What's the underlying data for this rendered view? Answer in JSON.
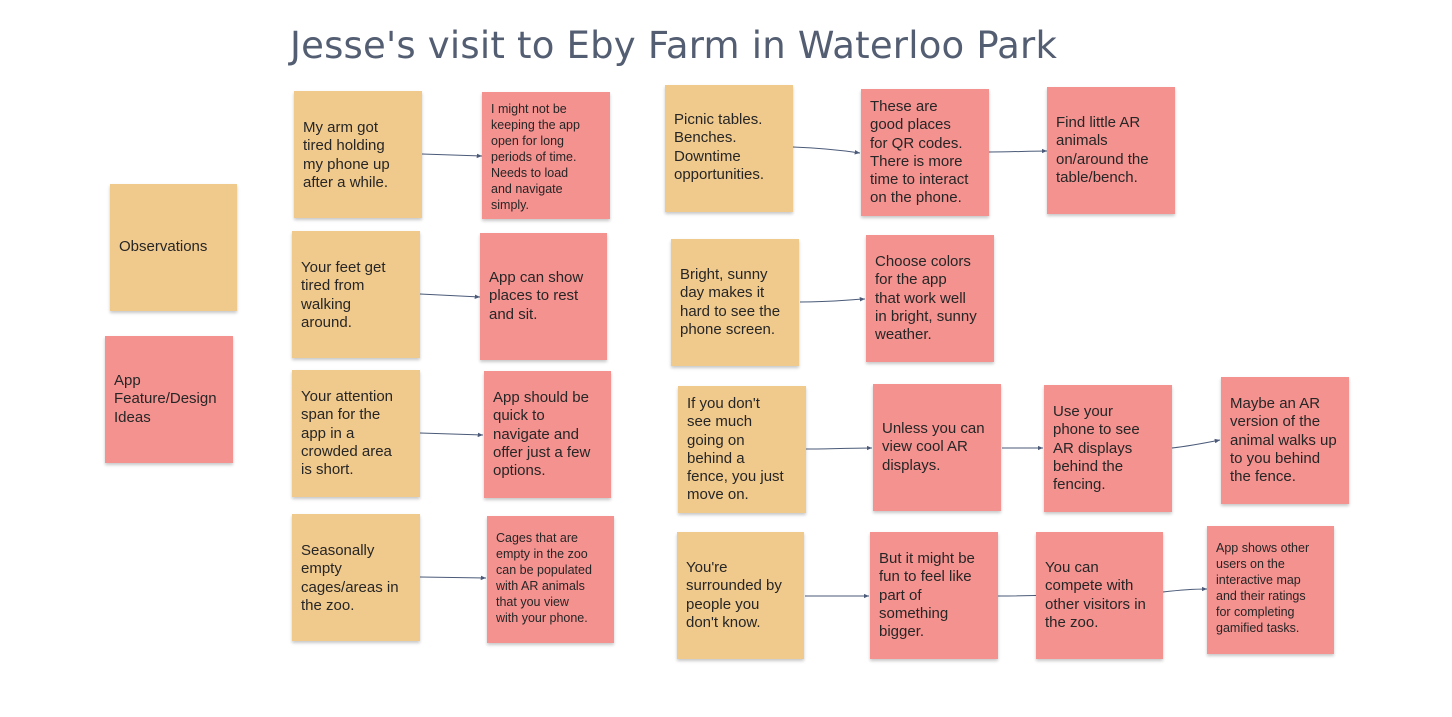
{
  "title": "Jesse's visit to Eby Farm in Waterloo Park",
  "legend": {
    "observations": "Observations",
    "ideas": "App\nFeature/Design\nIdeas"
  },
  "colors": {
    "observation": "#f0c98c",
    "idea": "#f49290",
    "title": "#545e72",
    "connector": "#4a5a78"
  },
  "notes": {
    "obs_arm": "My arm got\ntired holding\nmy phone up\nafter a while.",
    "idea_arm": "I might not be\nkeeping the app\nopen for long\nperiods of time.\nNeeds to load\nand navigate\nsimply.",
    "obs_feet": "Your feet get\ntired from\nwalking\naround.",
    "idea_feet": "App can show\nplaces to rest\nand sit.",
    "obs_attention": "Your attention\nspan for the\napp in a\ncrowded area\nis short.",
    "idea_attention": "App should be\nquick to\nnavigate and\noffer just a few\noptions.",
    "obs_cages": "Seasonally\nempty\ncages/areas in\nthe zoo.",
    "idea_cages": "Cages that are\nempty in the zoo\ncan be populated\nwith AR animals\nthat you view\nwith your phone.",
    "obs_picnic": "Picnic tables.\nBenches.\nDowntime\nopportunities.",
    "idea_qr": "These are\ngood places\nfor QR codes.\nThere is more\ntime to interact\non the phone.",
    "idea_little_ar": "Find little AR\nanimals\non/around the\ntable/bench.",
    "obs_sunny": "Bright, sunny\nday makes it\nhard to see the\nphone screen.",
    "idea_colors": "Choose colors\nfor the app\nthat work well\nin bright, sunny\nweather.",
    "obs_fence": "If you don't\nsee much\ngoing on\nbehind a\nfence, you just\nmove on.",
    "idea_unless": "Unless you can\nview cool AR\ndisplays.",
    "idea_use_phone": "Use your\nphone to see\nAR displays\nbehind the\nfencing.",
    "idea_maybe_ar": "Maybe an AR\nversion of the\nanimal walks up\nto you behind\nthe fence.",
    "obs_surrounded": "You're\nsurrounded by\npeople you\ndon't know.",
    "idea_bigger": "But it might be\nfun to feel like\npart of\nsomething\nbigger.",
    "idea_compete": "You can\ncompete with\nother visitors in\nthe zoo.",
    "idea_app_shows": "App shows other\nusers on the\ninteractive map\nand their ratings\nfor completing\ngamified tasks."
  }
}
